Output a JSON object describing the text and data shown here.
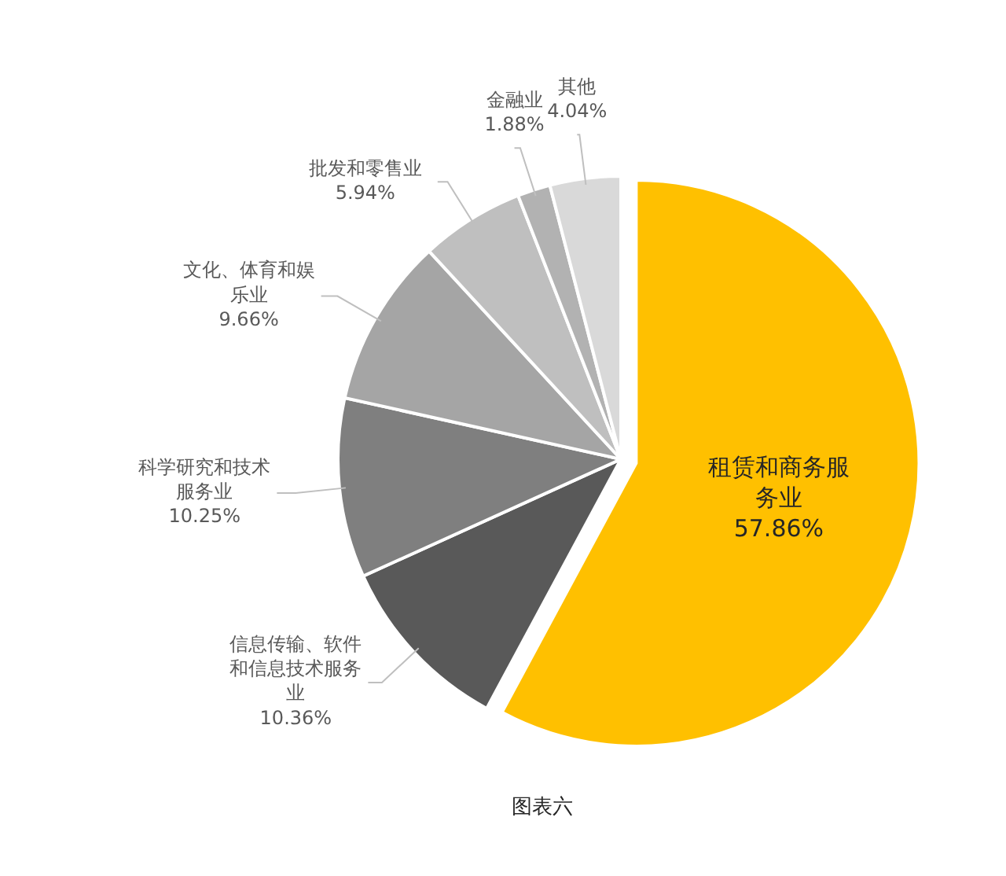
{
  "chart_data": {
    "type": "pie",
    "annotations": [
      "图表六"
    ],
    "categories": [
      "租赁和商务服务业",
      "信息传输、软件和信息技术服务业",
      "科学研究和技术服务业",
      "文化、体育和娱乐业",
      "批发和零售业",
      "金融业",
      "其他"
    ],
    "values": [
      57.86,
      10.36,
      10.25,
      9.66,
      5.94,
      1.88,
      4.04
    ],
    "colors": [
      "#ffc000",
      "#595959",
      "#7f7f7f",
      "#a5a5a5",
      "#bfbfbf",
      "#b2b2b2",
      "#d9d9d9"
    ],
    "value_labels": [
      "57.86%",
      "10.36%",
      "10.25%",
      "9.66%",
      "5.94%",
      "1.88%",
      "4.04%"
    ]
  }
}
